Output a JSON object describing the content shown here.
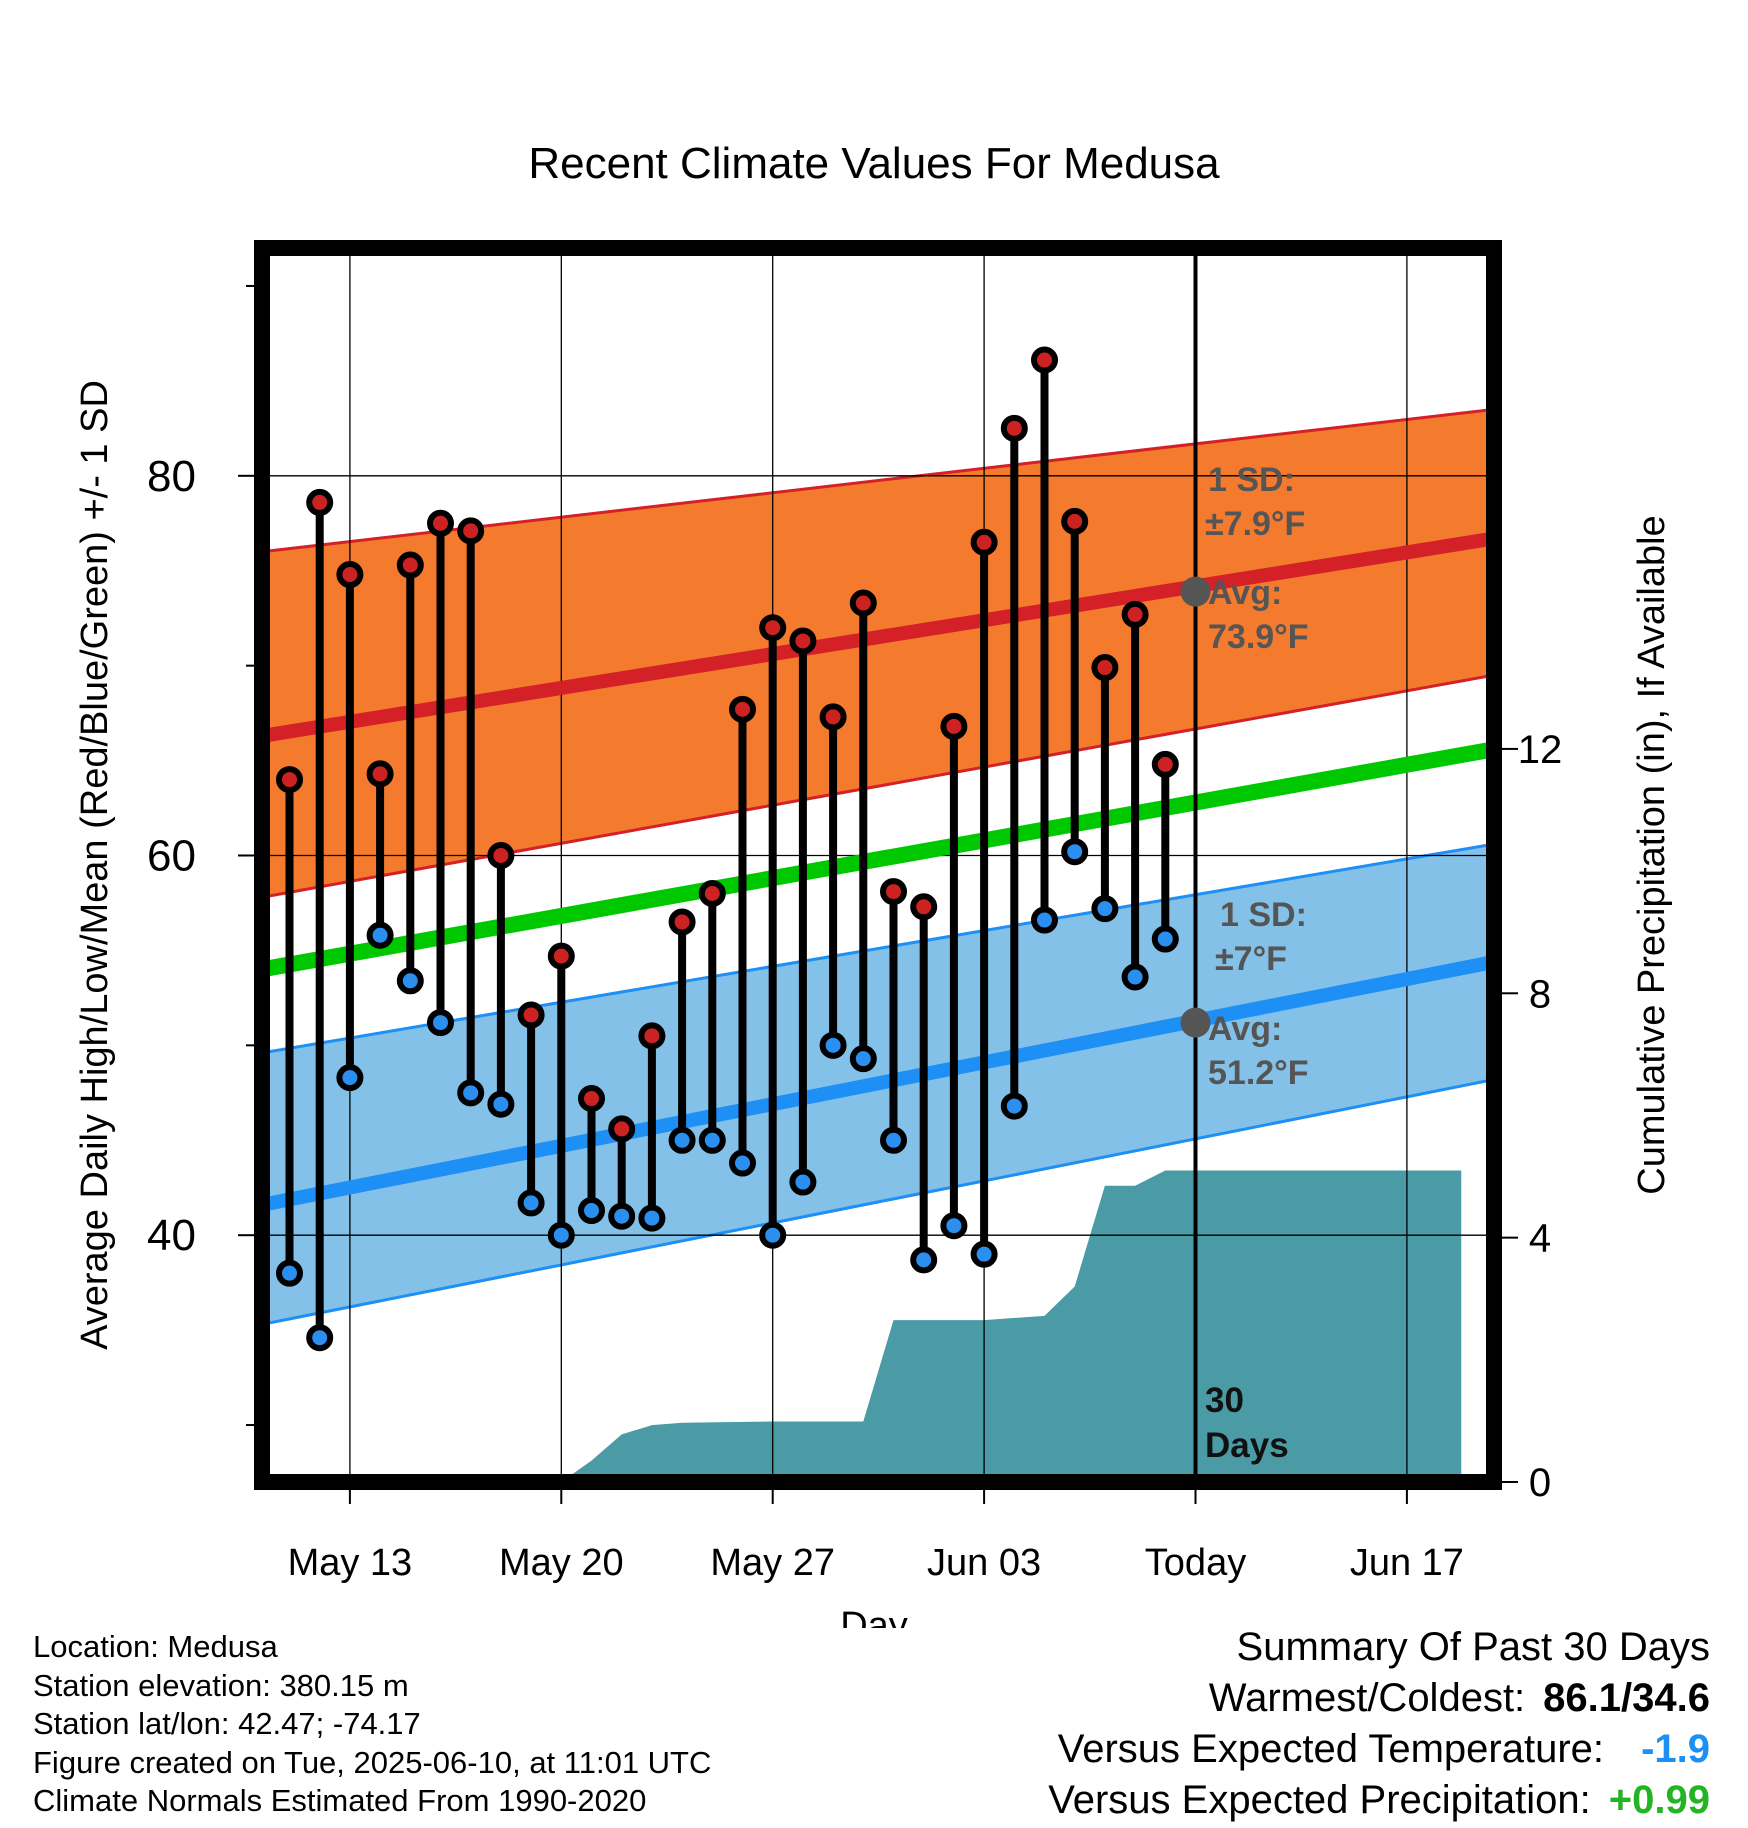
{
  "chart_data": {
    "type": "climate-range",
    "title": "Recent Climate Values For Medusa",
    "xlabel": "Day",
    "ylabel_left": "Average Daily High/Low/Mean (Red/Blue/Green) +/- 1 SD",
    "ylabel_right": "Cumulative Precipitation (in), If Available",
    "x_start": "May 11",
    "x_end": "Jun 19",
    "x_ticks": [
      {
        "day": 2,
        "label": "May 13"
      },
      {
        "day": 9,
        "label": "May 20"
      },
      {
        "day": 16,
        "label": "May 27"
      },
      {
        "day": 23,
        "label": "Jun 03"
      },
      {
        "day": 30,
        "label": "Today"
      },
      {
        "day": 37,
        "label": "Jun 17"
      }
    ],
    "ylim_left": [
      27,
      92
    ],
    "yticks_left": [
      40,
      60,
      80
    ],
    "ylim_right": [
      0,
      20.2
    ],
    "yticks_right": [
      0,
      4,
      8,
      12
    ],
    "grid": true,
    "today_day": 30,
    "today_label": [
      "30",
      "Days"
    ],
    "daily_high": [
      64.0,
      78.6,
      74.8,
      64.3,
      75.3,
      77.5,
      77.1,
      60.0,
      51.6,
      54.7,
      47.2,
      45.6,
      50.5,
      56.5,
      58.0,
      67.7,
      72.0,
      71.3,
      67.3,
      73.3,
      58.1,
      57.3,
      66.8,
      76.5,
      82.5,
      86.1,
      77.6,
      69.9,
      72.7,
      64.8
    ],
    "daily_low": [
      38.0,
      34.6,
      48.3,
      55.8,
      53.4,
      51.2,
      47.5,
      46.9,
      41.7,
      40.0,
      41.3,
      41.0,
      40.9,
      45.0,
      45.0,
      43.8,
      40.0,
      42.8,
      50.0,
      49.3,
      45.0,
      38.7,
      40.5,
      39.0,
      46.8,
      56.6,
      60.2,
      57.2,
      53.6,
      55.6
    ],
    "normal_high_avg": [
      66.3,
      76.7
    ],
    "normal_high_sd_band": [
      [
        57.8,
        76.0
      ],
      [
        69.5,
        83.5
      ]
    ],
    "normal_low_avg": [
      41.6,
      54.4
    ],
    "normal_low_sd_band": [
      [
        35.3,
        49.6
      ],
      [
        48.2,
        60.6
      ]
    ],
    "normal_mean_avg": [
      54.0,
      65.6
    ],
    "precip_cumulative": [
      [
        9,
        0.0
      ],
      [
        10,
        0.35
      ],
      [
        11,
        0.78
      ],
      [
        12,
        0.93
      ],
      [
        13,
        0.97
      ],
      [
        16,
        0.99
      ],
      [
        19,
        0.99
      ],
      [
        20,
        2.65
      ],
      [
        21,
        2.65
      ],
      [
        23,
        2.65
      ],
      [
        25,
        2.72
      ],
      [
        26,
        3.2
      ],
      [
        27,
        4.85
      ],
      [
        28,
        4.85
      ],
      [
        29,
        5.1
      ],
      [
        30,
        5.1
      ],
      [
        38.8,
        5.1
      ]
    ],
    "annotations": {
      "high_sd": "1 SD:",
      "high_sd_value": "±7.9°F",
      "high_avg": "Avg:",
      "high_avg_value": "73.9°F",
      "low_sd": "1 SD:",
      "low_sd_value": "±7°F",
      "low_avg": "Avg:",
      "low_avg_value": "51.2°F"
    },
    "today_high_avg": 73.9,
    "today_low_avg": 51.2,
    "colors": {
      "high_band": "#f47a2e",
      "high_line": "#d42127",
      "low_band": "#84c1e8",
      "low_line": "#1e8ff5",
      "mean_line": "#00c800",
      "precip": "#4a9ba5",
      "high_dot": "#cc2222",
      "low_dot": "#2b8ff0",
      "annotation": "#555555"
    }
  },
  "info": [
    "Location: Medusa",
    "Station elevation: 380.15 m",
    "Station lat/lon: 42.47; -74.17",
    "Figure created on Tue, 2025-06-10, at 11:01 UTC",
    "Climate Normals Estimated From 1990-2020"
  ],
  "summary": {
    "heading": "Summary Of Past 30 Days",
    "warmest_label": "Warmest/Coldest:",
    "warmest_value": "86.1/34.6",
    "temp_label": "Versus Expected Temperature:",
    "temp_value": "-1.9",
    "temp_color": "#1e8ff5",
    "precip_label": "Versus Expected Precipitation:",
    "precip_value": "+0.99",
    "precip_color": "#22b422"
  }
}
